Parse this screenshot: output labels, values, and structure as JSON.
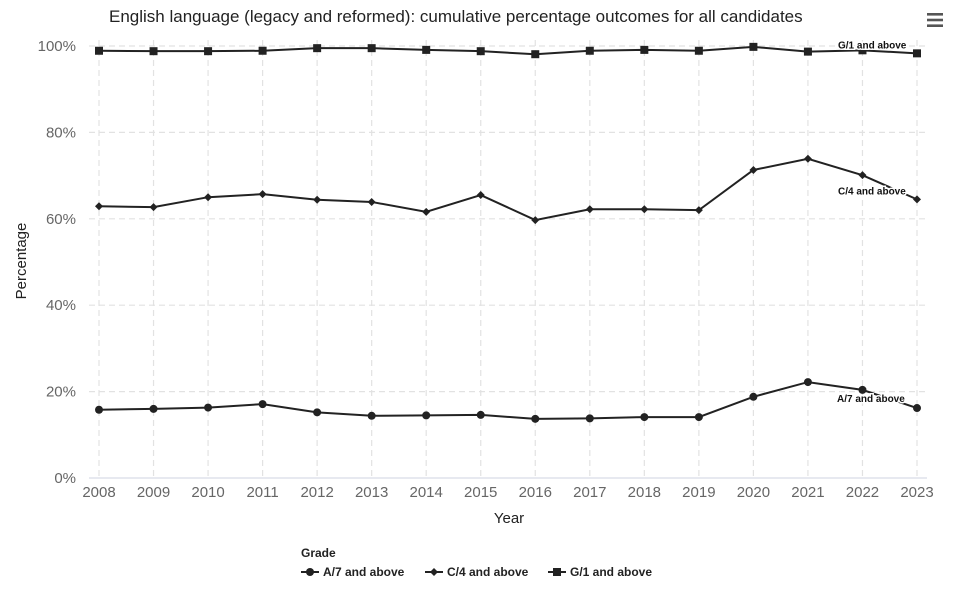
{
  "title": "English language (legacy and reformed): cumulative percentage outcomes for all candidates",
  "menu": {
    "icon": "hamburger-menu-icon"
  },
  "legend": {
    "title": "Grade",
    "items": [
      {
        "label": "A/7 and above",
        "marker": "circle"
      },
      {
        "label": "C/4 and above",
        "marker": "diamond"
      },
      {
        "label": "G/1 and above",
        "marker": "square"
      }
    ]
  },
  "chart_data": {
    "type": "line",
    "title": "English language (legacy and reformed): cumulative percentage outcomes for all candidates",
    "xlabel": "Year",
    "ylabel": "Percentage",
    "x": [
      "2008",
      "2009",
      "2010",
      "2011",
      "2012",
      "2013",
      "2014",
      "2015",
      "2016",
      "2017",
      "2018",
      "2019",
      "2020",
      "2021",
      "2022",
      "2023"
    ],
    "ylim": [
      0,
      100
    ],
    "yticks": [
      "0%",
      "20%",
      "40%",
      "60%",
      "80%",
      "100%"
    ],
    "grid": true,
    "legend_position": "bottom",
    "line_color": "#222222",
    "series": [
      {
        "name": "A/7 and above",
        "marker": "circle",
        "end_label": "A/7 and above",
        "values": [
          15.8,
          16.0,
          16.3,
          17.1,
          15.2,
          14.4,
          14.5,
          14.6,
          13.7,
          13.8,
          14.1,
          14.1,
          18.8,
          22.2,
          20.4,
          16.2
        ]
      },
      {
        "name": "C/4 and above",
        "marker": "diamond",
        "end_label": "C/4 and above",
        "values": [
          62.9,
          62.7,
          65.0,
          65.7,
          64.4,
          63.9,
          61.6,
          65.5,
          59.7,
          62.2,
          62.2,
          62.0,
          71.3,
          73.9,
          70.1,
          64.5
        ]
      },
      {
        "name": "G/1 and above",
        "marker": "square",
        "end_label": "G/1 and above",
        "values": [
          98.9,
          98.8,
          98.8,
          98.9,
          99.5,
          99.5,
          99.1,
          98.8,
          98.1,
          98.9,
          99.1,
          98.9,
          99.8,
          98.7,
          99.0,
          98.3
        ]
      }
    ]
  }
}
